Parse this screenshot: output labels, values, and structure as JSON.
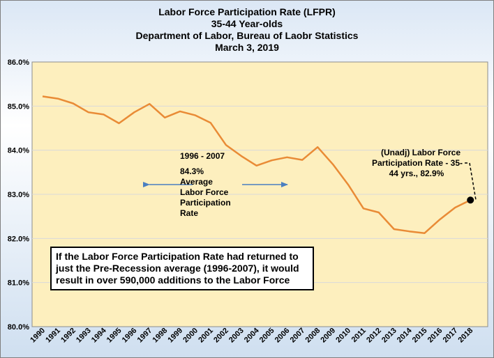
{
  "chart_data": {
    "type": "line",
    "title_lines": [
      "Labor Force Participation Rate (LFPR)",
      "35-44 Year-olds",
      "Department of Labor, Bureau of Laobr Statistics",
      "March 3, 2019"
    ],
    "x": [
      "1990",
      "1991",
      "1992",
      "1993",
      "1994",
      "1995",
      "1996",
      "1997",
      "1998",
      "1999",
      "2000",
      "2001",
      "2002",
      "2003",
      "2004",
      "2005",
      "2006",
      "2007",
      "2008",
      "2009",
      "2010",
      "2011",
      "2012",
      "2013",
      "2014",
      "2015",
      "2016",
      "2017",
      "2018"
    ],
    "series": [
      {
        "values": [
          85.22,
          85.17,
          85.06,
          84.86,
          84.81,
          84.61,
          84.86,
          85.05,
          84.74,
          84.88,
          84.79,
          84.62,
          84.12,
          83.87,
          83.65,
          83.77,
          83.84,
          83.78,
          84.07,
          83.68,
          83.22,
          82.68,
          82.59,
          82.21,
          82.16,
          82.12,
          82.43,
          82.7,
          82.87
        ]
      }
    ],
    "ylim": [
      80.0,
      86.0
    ],
    "y_ticks": [
      "80.0%",
      "81.0%",
      "82.0%",
      "83.0%",
      "84.0%",
      "85.0%",
      "86.0%"
    ],
    "grid": true,
    "colors": {
      "line": "#e98b36",
      "plot_bg": "#fdefbe",
      "grid": "#d9d9d9",
      "arrow": "#4a7fc1",
      "marker": "#000000"
    },
    "annotations": {
      "period_lines": [
        "1996 - 2007",
        "84.3%",
        "Average",
        "Labor Force",
        "Participation",
        "Rate"
      ],
      "endpoint_lines": [
        "(Unadj) Labor Force",
        "Participation Rate - 35-",
        "44 yrs., 82.9%"
      ],
      "note": "If the Labor Force Participation Rate had returned to just the Pre-Recession average (1996-2007), it would result in over 590,000 additions to the Labor Force"
    }
  }
}
